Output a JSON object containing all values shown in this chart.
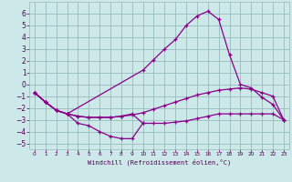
{
  "bg_color": "#cce8e8",
  "grid_color": "#99bbbb",
  "line_color": "#880088",
  "xlabel": "Windchill (Refroidissement éolien,°C)",
  "tick_color": "#550055",
  "xlim": [
    -0.5,
    23.5
  ],
  "ylim": [
    -5.5,
    7.0
  ],
  "xticks": [
    0,
    1,
    2,
    3,
    4,
    5,
    6,
    7,
    8,
    9,
    10,
    11,
    12,
    13,
    14,
    15,
    16,
    17,
    18,
    19,
    20,
    21,
    22,
    23
  ],
  "yticks": [
    -5,
    -4,
    -3,
    -2,
    -1,
    0,
    1,
    2,
    3,
    4,
    5,
    6
  ],
  "series": [
    {
      "x": [
        0,
        1,
        2,
        3,
        4,
        5,
        6,
        7,
        8,
        9,
        10
      ],
      "y": [
        -0.7,
        -1.5,
        -2.2,
        -2.5,
        -3.3,
        -3.5,
        -4.0,
        -4.4,
        -4.6,
        -4.6,
        -3.3
      ]
    },
    {
      "x": [
        0,
        1,
        2,
        3,
        4,
        5,
        6,
        7,
        8,
        9,
        10,
        11,
        12,
        13,
        14,
        15,
        16,
        17,
        18,
        19,
        20,
        21,
        22,
        23
      ],
      "y": [
        -0.7,
        -1.5,
        -2.2,
        -2.5,
        -2.7,
        -2.8,
        -2.8,
        -2.8,
        -2.7,
        -2.6,
        -2.4,
        -2.1,
        -1.8,
        -1.5,
        -1.2,
        -0.9,
        -0.7,
        -0.5,
        -0.4,
        -0.3,
        -0.4,
        -0.7,
        -1.0,
        -3.0
      ]
    },
    {
      "x": [
        0,
        1,
        2,
        3,
        4,
        5,
        6,
        7,
        8,
        9,
        10,
        11,
        12,
        13,
        14,
        15,
        16,
        17,
        18,
        19,
        20,
        21,
        22,
        23
      ],
      "y": [
        -0.7,
        -1.5,
        -2.2,
        -2.5,
        -2.7,
        -2.8,
        -2.8,
        -2.8,
        -2.7,
        -2.5,
        -3.3,
        -3.3,
        -3.3,
        -3.2,
        -3.1,
        -2.9,
        -2.7,
        -2.5,
        -2.5,
        -2.5,
        -2.5,
        -2.5,
        -2.5,
        -3.0
      ]
    },
    {
      "x": [
        0,
        1,
        2,
        3,
        10,
        11,
        12,
        13,
        14,
        15,
        16,
        17,
        18,
        19,
        20,
        21,
        22,
        23
      ],
      "y": [
        -0.7,
        -1.5,
        -2.2,
        -2.5,
        1.2,
        2.1,
        3.0,
        3.8,
        5.0,
        5.8,
        6.2,
        5.5,
        2.5,
        0.0,
        -0.3,
        -1.1,
        -1.7,
        -3.0
      ]
    }
  ]
}
